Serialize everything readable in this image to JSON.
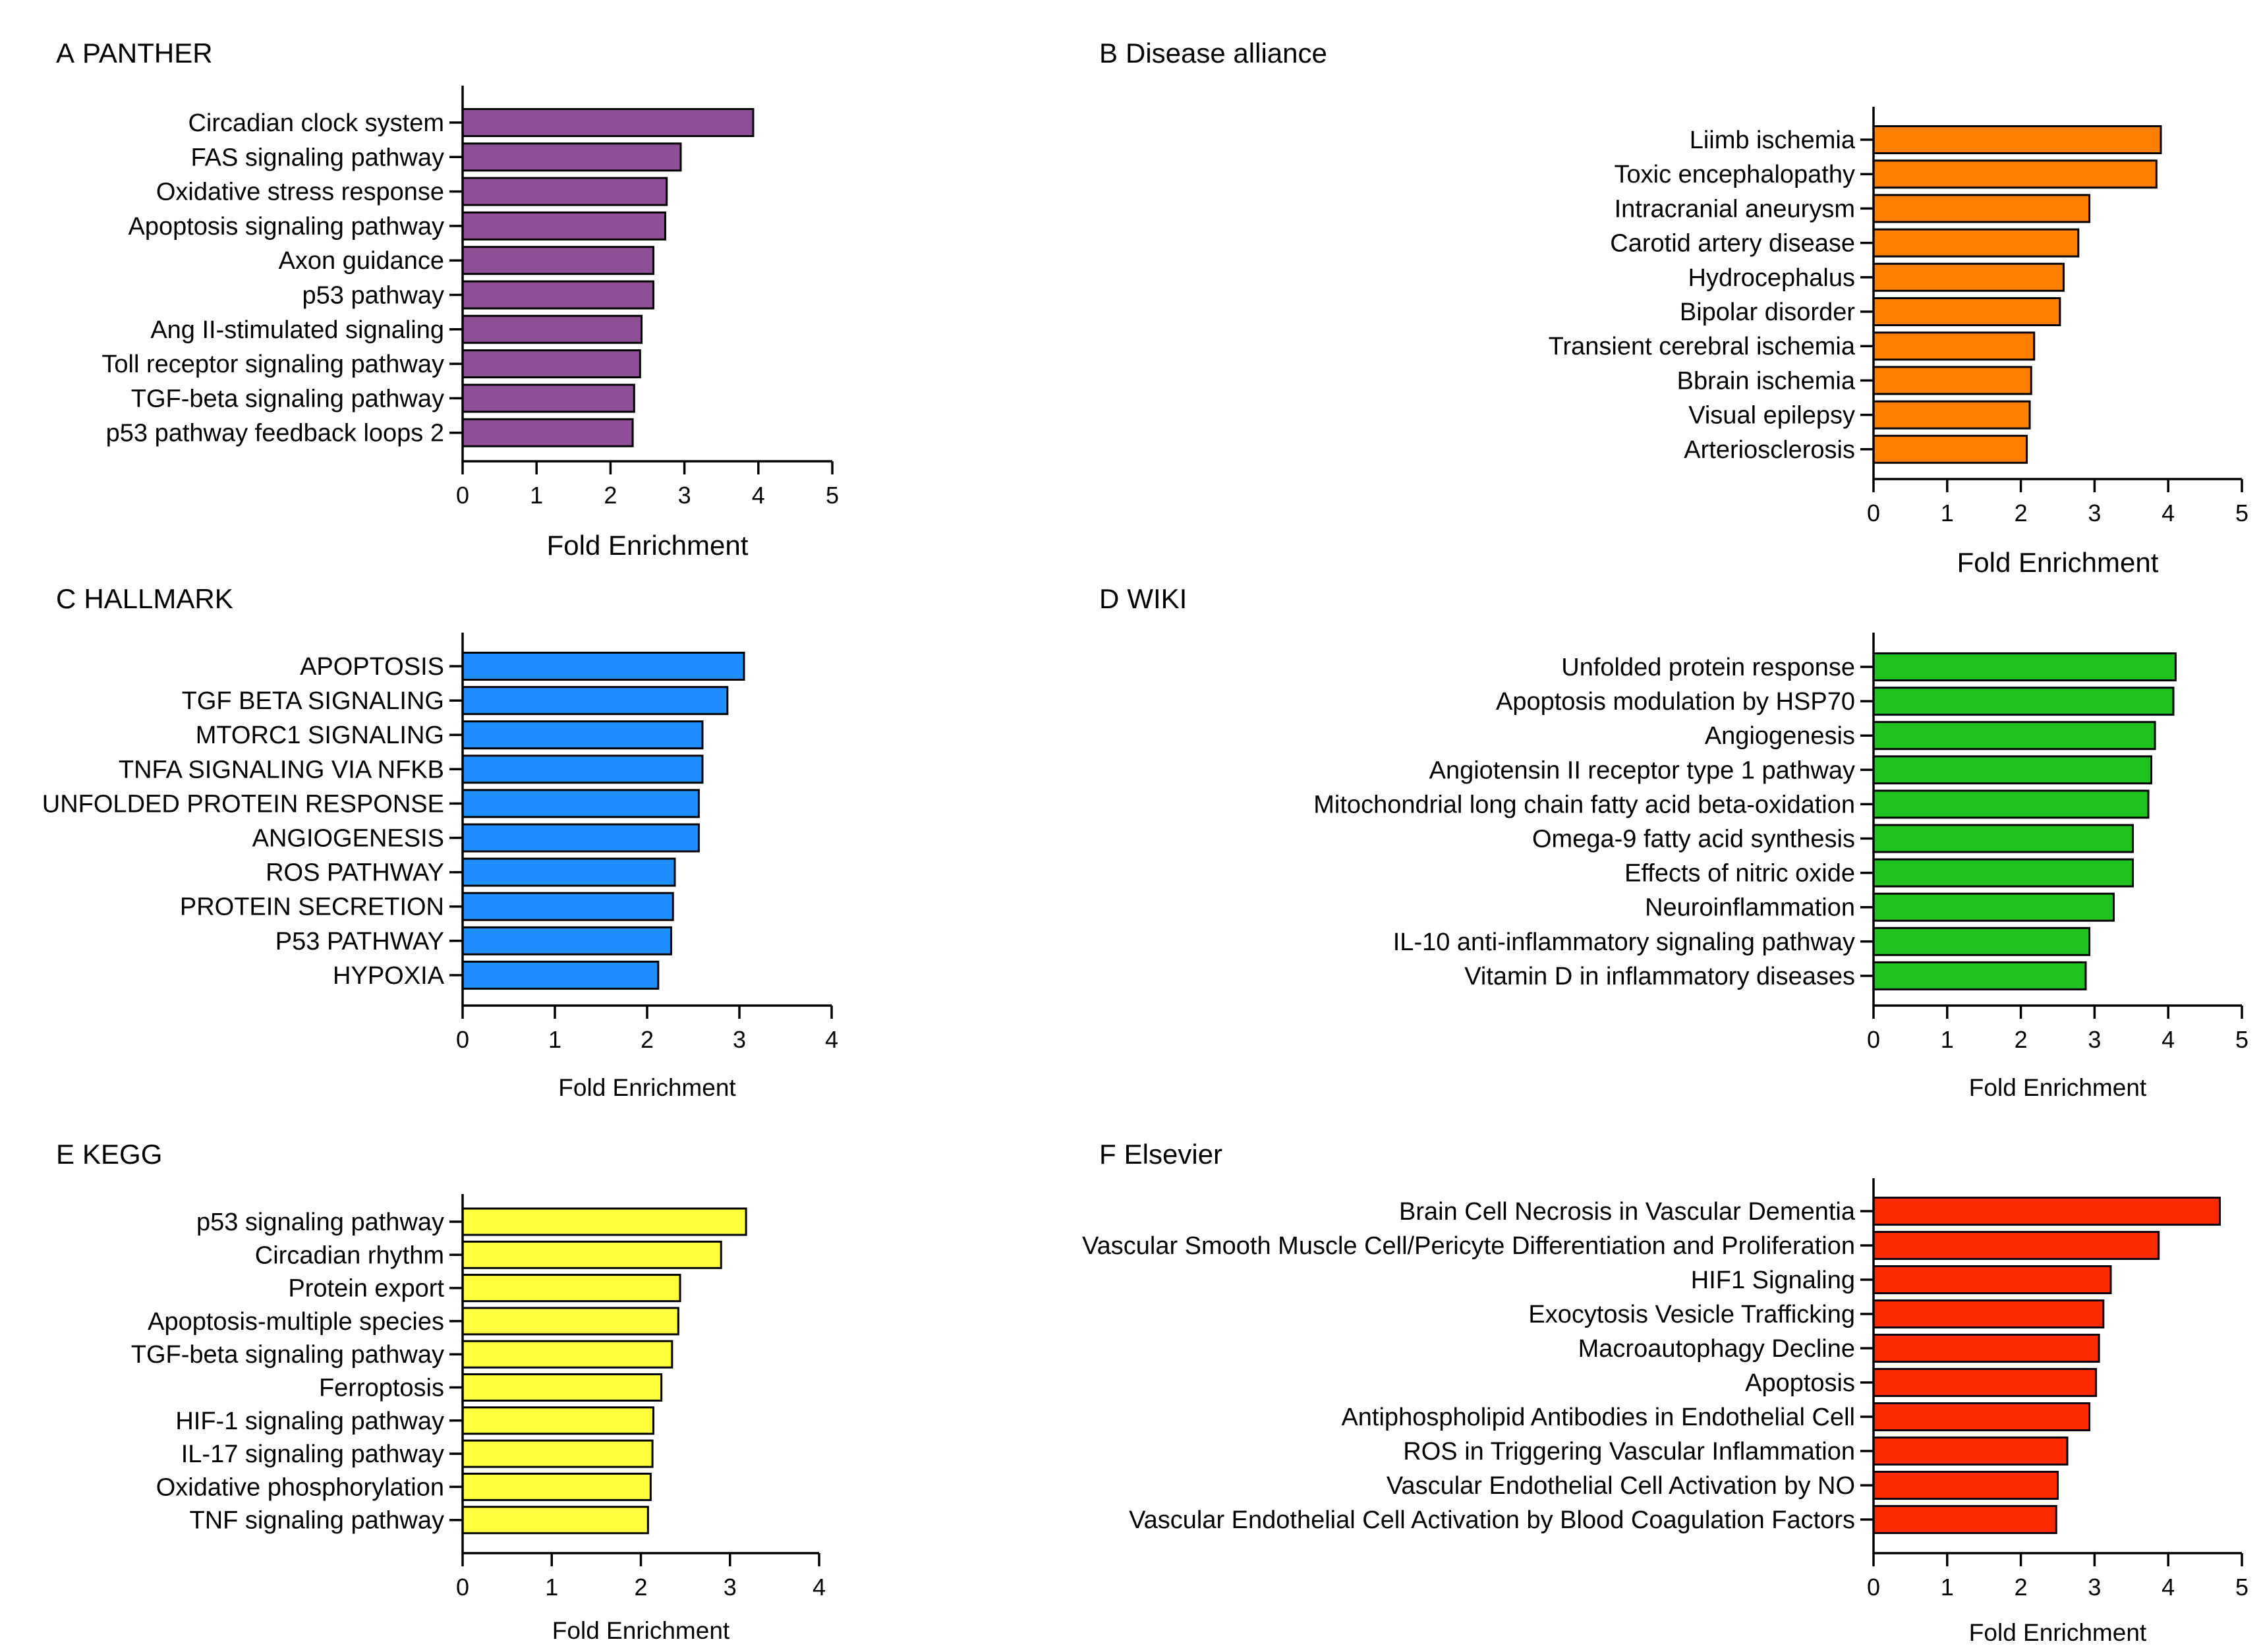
{
  "chart_data": [
    {
      "type": "bar",
      "orientation": "horizontal",
      "panel_label": "A",
      "title": "PANTHER",
      "categories": [
        "Circadian clock system",
        "FAS signaling pathway",
        "Oxidative stress response",
        "Apoptosis signaling pathway",
        "Axon guidance",
        "p53 pathway",
        "Ang II-stimulated signaling",
        "Toll receptor signaling pathway",
        "TGF-beta signaling pathway",
        "p53 pathway feedback loops 2"
      ],
      "values": [
        3.93,
        2.95,
        2.76,
        2.74,
        2.58,
        2.58,
        2.42,
        2.4,
        2.32,
        2.3
      ],
      "xlabel": "Fold Enrichment",
      "xlim": [
        0,
        5
      ],
      "xticks": [
        "0",
        "1",
        "2",
        "3",
        "4",
        "5"
      ],
      "color": "#8e4f96"
    },
    {
      "type": "bar",
      "orientation": "horizontal",
      "panel_label": "B",
      "title": "Disease alliance",
      "categories": [
        "Liimb ischemia",
        "Toxic encephalopathy",
        "Intracranial aneurysm",
        "Carotid artery disease",
        "Hydrocephalus",
        "Bipolar disorder",
        "Transient cerebral ischemia",
        "Bbrain ischemia",
        "Visual epilepsy",
        "Arteriosclerosis"
      ],
      "values": [
        3.9,
        3.84,
        2.93,
        2.78,
        2.58,
        2.53,
        2.18,
        2.14,
        2.12,
        2.08
      ],
      "xlabel": "Fold Enrichment",
      "xlim": [
        0,
        5
      ],
      "xticks": [
        "0",
        "1",
        "2",
        "3",
        "4",
        "5"
      ],
      "color": "#ff8000"
    },
    {
      "type": "bar",
      "orientation": "horizontal",
      "panel_label": "C",
      "title": "HALLMARK",
      "categories": [
        "APOPTOSIS",
        "TGF BETA SIGNALING",
        "MTORC1 SIGNALING",
        "TNFA SIGNALING VIA NFKB",
        "UNFOLDED PROTEIN RESPONSE",
        "ANGIOGENESIS",
        "ROS PATHWAY",
        "PROTEIN SECRETION",
        "P53 PATHWAY",
        "HYPOXIA"
      ],
      "values": [
        3.05,
        2.87,
        2.6,
        2.6,
        2.56,
        2.56,
        2.3,
        2.28,
        2.26,
        2.12
      ],
      "xlabel": "Fold Enrichment",
      "xlim": [
        0,
        4
      ],
      "xticks": [
        "0",
        "1",
        "2",
        "3",
        "4"
      ],
      "color": "#1f8fff"
    },
    {
      "type": "bar",
      "orientation": "horizontal",
      "panel_label": "D",
      "title": "WIKI",
      "categories": [
        "Unfolded protein response",
        "Apoptosis modulation by HSP70",
        "Angiogenesis",
        "Angiotensin II receptor type 1 pathway",
        "Mitochondrial long chain fatty acid beta-oxidation",
        "Omega-9 fatty acid synthesis",
        "Effects of nitric oxide",
        "Neuroinflammation",
        "IL-10 anti-inflammatory signaling pathway",
        "Vitamin D in inflammatory diseases"
      ],
      "values": [
        4.1,
        4.07,
        3.82,
        3.77,
        3.73,
        3.52,
        3.52,
        3.26,
        2.93,
        2.88
      ],
      "xlabel": "Fold Enrichment",
      "xlim": [
        0,
        5
      ],
      "xticks": [
        "0",
        "1",
        "2",
        "3",
        "4",
        "5"
      ],
      "color": "#1fc21f"
    },
    {
      "type": "bar",
      "orientation": "horizontal",
      "panel_label": "E",
      "title": "KEGG",
      "categories": [
        "p53 signaling pathway",
        "Circadian rhythm",
        "Protein export",
        "Apoptosis-multiple species",
        "TGF-beta signaling pathway",
        "Ferroptosis",
        "HIF-1 signaling pathway",
        "IL-17 signaling pathway",
        "Oxidative phosphorylation",
        "TNF signaling pathway"
      ],
      "values": [
        3.18,
        2.9,
        2.44,
        2.42,
        2.35,
        2.23,
        2.14,
        2.13,
        2.11,
        2.08
      ],
      "xlabel": "Fold Enrichment",
      "xlim": [
        0,
        4
      ],
      "xticks": [
        "0",
        "1",
        "2",
        "3",
        "4"
      ],
      "color": "#ffff40"
    },
    {
      "type": "bar",
      "orientation": "horizontal",
      "panel_label": "F",
      "title": "Elsevier",
      "categories": [
        "Brain Cell Necrosis in Vascular Dementia",
        "Vascular Smooth Muscle Cell/Pericyte Differentiation and Proliferation",
        "HIF1 Signaling",
        "Exocytosis Vesicle Trafficking",
        "Macroautophagy Decline",
        "Apoptosis",
        "Antiphospholipid Antibodies in Endothelial Cell",
        "ROS in Triggering Vascular Inflammation",
        "Vascular Endothelial Cell Activation by NO",
        "Vascular Endothelial Cell Activation by Blood Coagulation Factors"
      ],
      "values": [
        4.7,
        3.87,
        3.22,
        3.12,
        3.06,
        3.02,
        2.93,
        2.63,
        2.5,
        2.48
      ],
      "xlabel": "Fold Enrichment",
      "xlim": [
        0,
        5
      ],
      "xticks": [
        "0",
        "1",
        "2",
        "3",
        "4",
        "5"
      ],
      "color": "#ff2a00"
    }
  ]
}
